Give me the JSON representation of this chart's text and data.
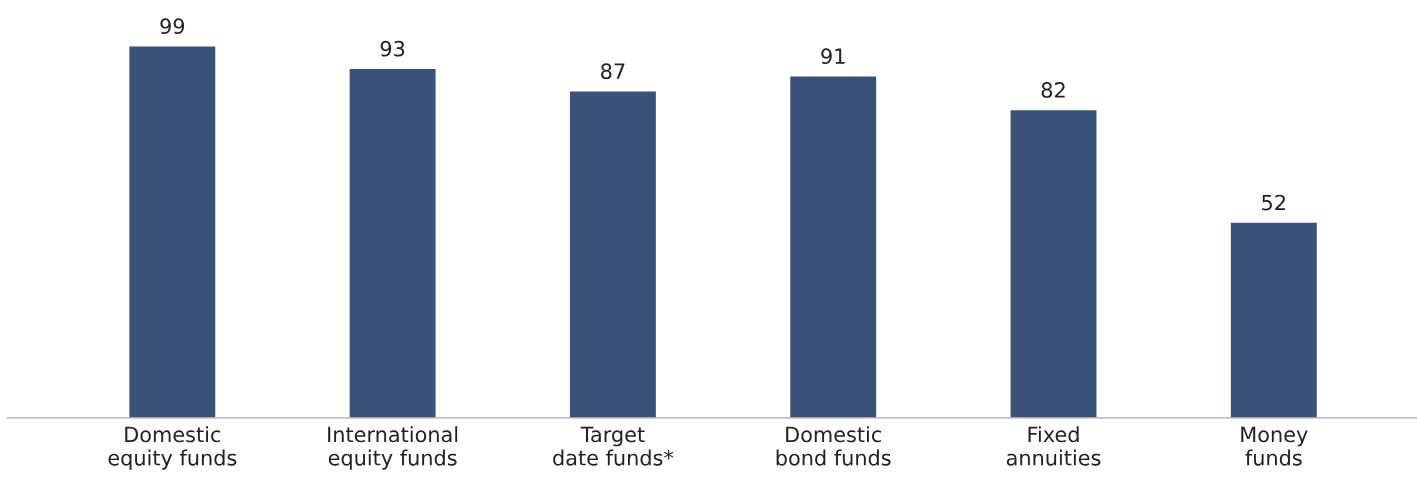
{
  "chart_data": {
    "type": "bar",
    "categories": [
      "Domestic\nequity funds",
      "International\nequity funds",
      "Target\ndate funds*",
      "Domestic\nbond funds",
      "Fixed\nannuities",
      "Money\nfunds"
    ],
    "values": [
      99,
      93,
      87,
      91,
      82,
      52
    ],
    "color": "#3a5278",
    "data_labels": true,
    "tick_labels": "x",
    "grid": false,
    "legend": false
  }
}
